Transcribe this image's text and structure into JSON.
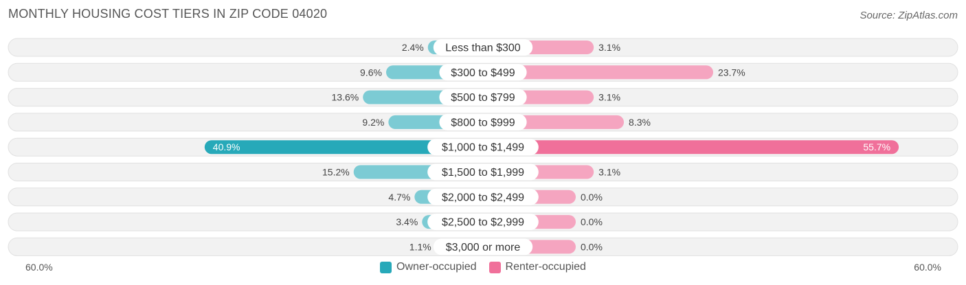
{
  "title": "MONTHLY HOUSING COST TIERS IN ZIP CODE 04020",
  "source": "Source: ZipAtlas.com",
  "colors": {
    "owner": "#7ccbd4",
    "owner_strong": "#27a9b9",
    "renter": "#f5a5c0",
    "renter_strong": "#f0709a",
    "row_bg": "#f2f2f2",
    "row_border": "#e0e0e0"
  },
  "chart_data": {
    "type": "bar",
    "orientation": "horizontal-diverging",
    "title": "MONTHLY HOUSING COST TIERS IN ZIP CODE 04020",
    "categories": [
      "Less than $300",
      "$300 to $499",
      "$500 to $799",
      "$800 to $999",
      "$1,000 to $1,499",
      "$1,500 to $1,999",
      "$2,000 to $2,499",
      "$2,500 to $2,999",
      "$3,000 or more"
    ],
    "series": [
      {
        "name": "Owner-occupied",
        "values": [
          2.4,
          9.6,
          13.6,
          9.2,
          40.9,
          15.2,
          4.7,
          3.4,
          1.1
        ],
        "labels": [
          "2.4%",
          "9.6%",
          "13.6%",
          "9.2%",
          "40.9%",
          "15.2%",
          "4.7%",
          "3.4%",
          "1.1%"
        ]
      },
      {
        "name": "Renter-occupied",
        "values": [
          3.1,
          23.7,
          3.1,
          8.3,
          55.7,
          3.1,
          0.0,
          0.0,
          0.0
        ],
        "labels": [
          "3.1%",
          "23.7%",
          "3.1%",
          "8.3%",
          "55.7%",
          "3.1%",
          "0.0%",
          "0.0%",
          "0.0%"
        ]
      }
    ],
    "axis_min_label": "60.0%",
    "axis_max_label": "60.0%",
    "xlim": [
      -60,
      60
    ],
    "legend": [
      "Owner-occupied",
      "Renter-occupied"
    ],
    "legend_position": "bottom"
  }
}
